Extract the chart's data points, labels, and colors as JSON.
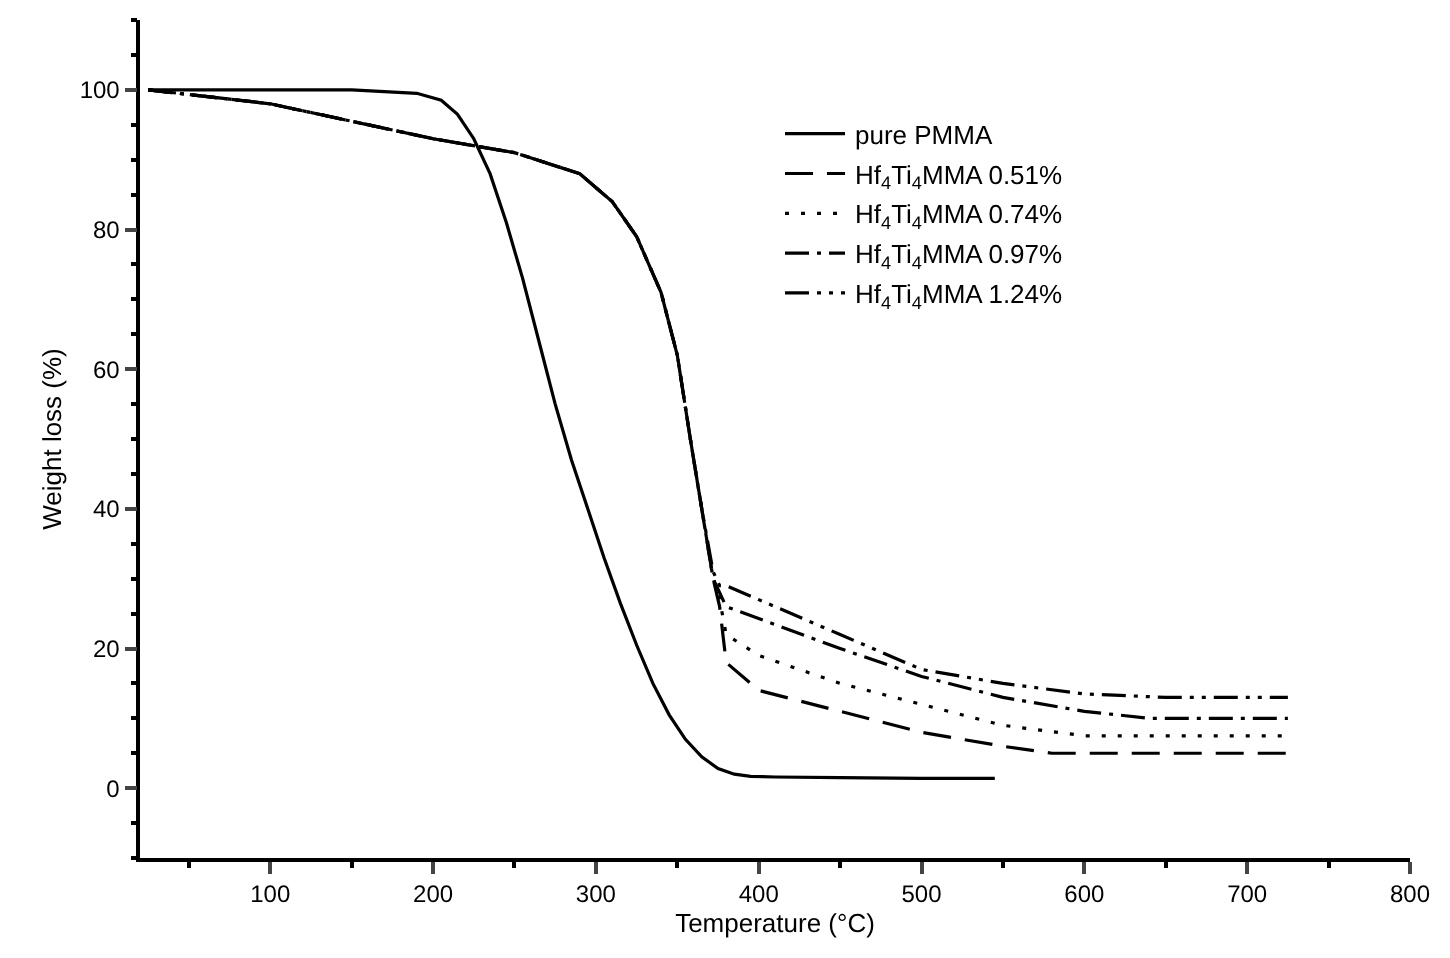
{
  "chart_data": {
    "type": "line",
    "xlabel": "Temperature (°C)",
    "ylabel": "Weight loss (%)",
    "xlim": [
      20,
      800
    ],
    "xticks": [
      100,
      200,
      300,
      400,
      500,
      600,
      700,
      800
    ],
    "ylim": [
      -10,
      110
    ],
    "yticks": [
      0,
      20,
      40,
      60,
      80,
      100
    ],
    "legend": "top right",
    "marker": "none",
    "series": [
      {
        "name": "pure PMMA",
        "color": "#000000",
        "line_style": "solid",
        "x": [
          25,
          100,
          150,
          190,
          205,
          215,
          225,
          235,
          245,
          255,
          265,
          275,
          285,
          295,
          305,
          315,
          325,
          335,
          345,
          355,
          365,
          375,
          385,
          395,
          410,
          450,
          500,
          545
        ],
        "values": [
          100,
          100,
          100,
          99.5,
          98.5,
          96.5,
          93,
          88,
          81,
          73,
          64,
          55,
          47,
          40,
          33,
          26.5,
          20.5,
          15,
          10.5,
          7,
          4.5,
          2.8,
          2,
          1.7,
          1.6,
          1.5,
          1.4,
          1.4
        ]
      },
      {
        "name": "Hf$_{4}$Ti$_{4}$MMA 0.51%",
        "color": "#000000",
        "line_style": "dashed",
        "x": [
          25,
          100,
          150,
          200,
          250,
          290,
          310,
          325,
          340,
          350,
          358,
          365,
          372,
          376,
          380,
          400,
          450,
          500,
          550,
          580,
          650,
          725
        ],
        "values": [
          100,
          98,
          95.5,
          93,
          91,
          88,
          84,
          79,
          71,
          62,
          50,
          40,
          30,
          26,
          18,
          14,
          11,
          8,
          6,
          5,
          5,
          5
        ]
      },
      {
        "name": "Hf$_{4}$Ti$_{4}$MMA 0.74%",
        "color": "#000000",
        "line_style": "dotted",
        "x": [
          25,
          100,
          150,
          200,
          250,
          290,
          310,
          325,
          340,
          350,
          358,
          365,
          372,
          376,
          380,
          400,
          450,
          500,
          550,
          600,
          650,
          725
        ],
        "values": [
          100,
          98,
          95.5,
          93,
          91,
          88,
          84,
          79,
          71,
          62,
          50,
          40,
          30,
          27,
          22,
          19,
          15,
          12,
          9,
          7.5,
          7.5,
          7.5
        ]
      },
      {
        "name": "Hf$_{4}$Ti$_{4}$MMA 0.97%",
        "color": "#000000",
        "line_style": "dashdot",
        "x": [
          25,
          100,
          150,
          200,
          250,
          290,
          310,
          325,
          340,
          350,
          358,
          365,
          372,
          376,
          380,
          450,
          500,
          550,
          600,
          640,
          725
        ],
        "values": [
          100,
          98,
          95.5,
          93,
          91,
          88,
          84,
          79,
          71,
          62,
          50,
          40,
          30,
          28,
          26,
          20,
          16,
          13,
          11,
          10,
          10
        ]
      },
      {
        "name": "Hf$_{4}$Ti$_{4}$MMA 1.24%",
        "color": "#000000",
        "line_style": "dashdotdot",
        "x": [
          25,
          100,
          150,
          200,
          250,
          290,
          310,
          325,
          340,
          350,
          358,
          365,
          372,
          376,
          380,
          450,
          500,
          550,
          600,
          650,
          725
        ],
        "values": [
          100,
          98,
          95.5,
          93,
          91,
          88,
          84,
          79,
          71,
          62,
          50,
          40,
          31,
          29,
          29,
          22,
          17,
          15,
          13.5,
          13,
          13
        ]
      }
    ]
  }
}
